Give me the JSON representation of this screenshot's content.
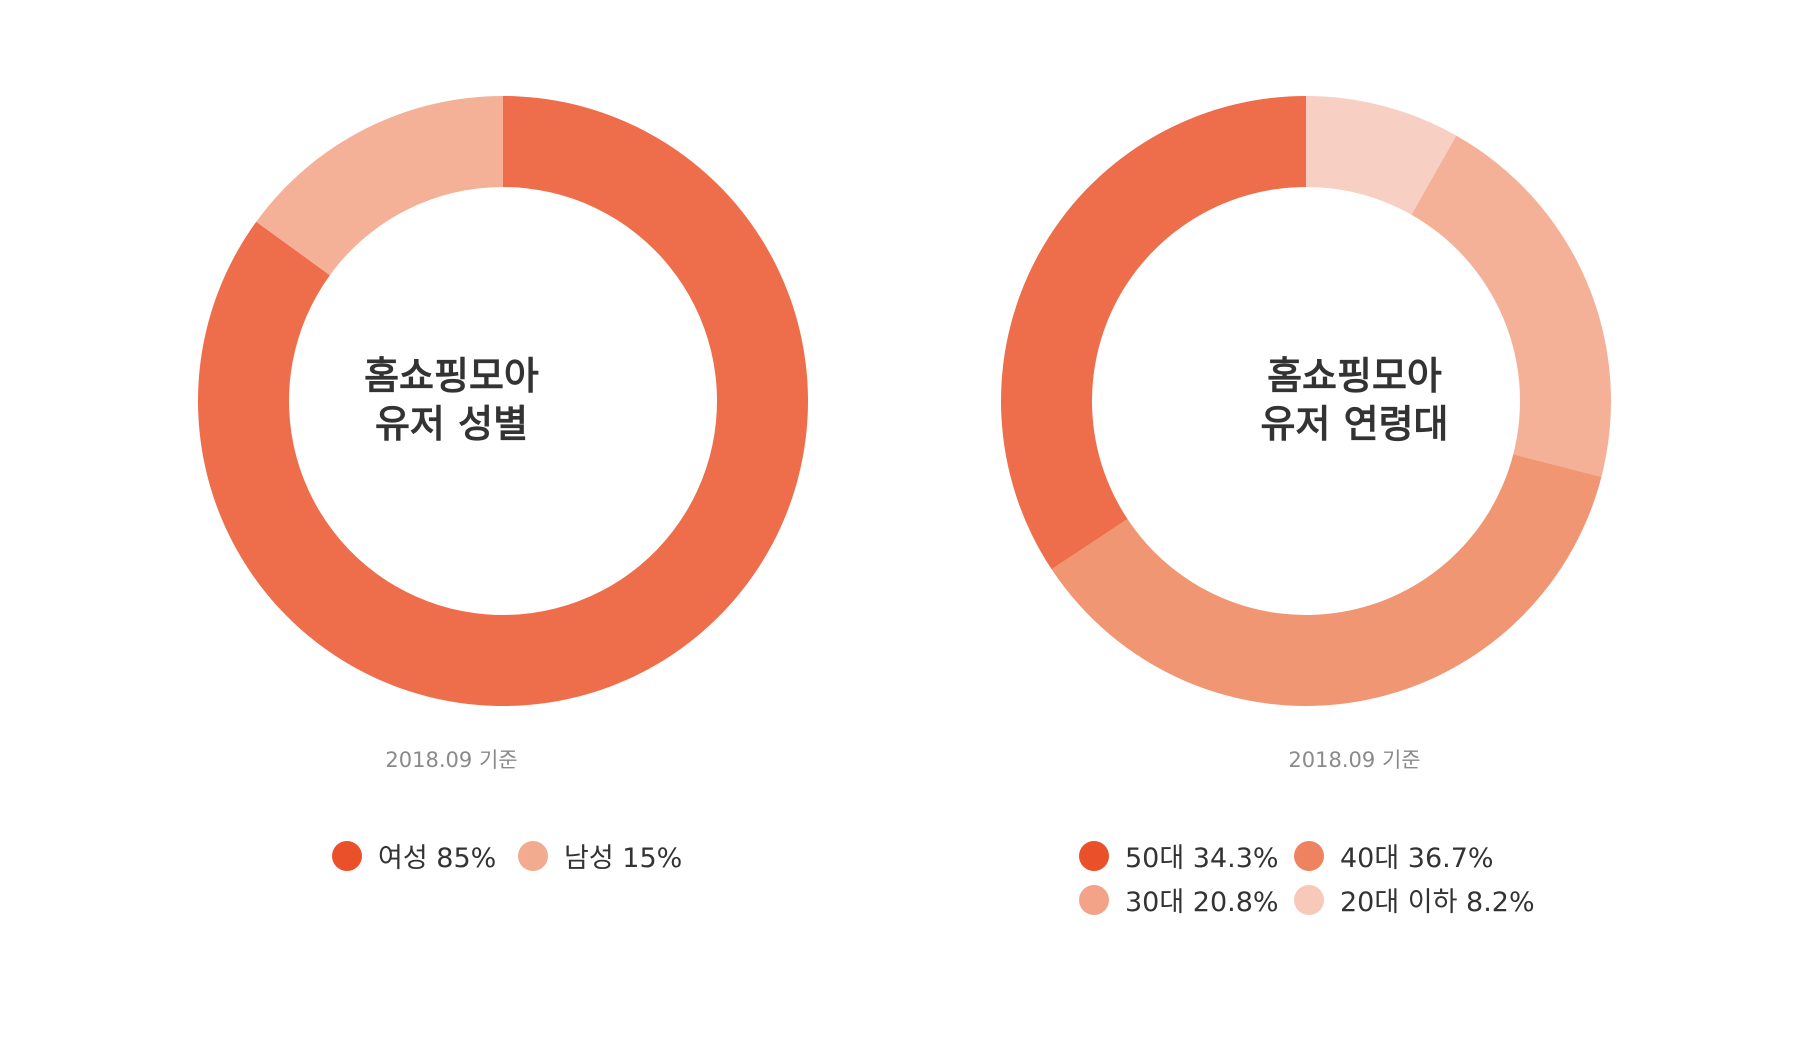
{
  "chart_data": [
    {
      "type": "pie",
      "title": "홈쇼핑모아 유저 성별",
      "title_lines": [
        "홈쇼핑모아",
        "유저 성별"
      ],
      "basis": "2018.09 기준",
      "slices": [
        {
          "label": "여성",
          "value": 85,
          "legend": "여성 85%",
          "color": "#ee6d4a",
          "dot_color": "#ea502a"
        },
        {
          "label": "남성",
          "value": 15,
          "legend": "남성 15%",
          "color": "#f4b198",
          "dot_color": "#f3ab90"
        }
      ]
    },
    {
      "type": "pie",
      "title": "홈쇼핑모아 유저 연령대",
      "title_lines": [
        "홈쇼핑모아",
        "유저 연령대"
      ],
      "basis": "2018.09 기준",
      "slices": [
        {
          "label": "20대 이하",
          "value": 8.2,
          "legend": "20대 이하 8.2%",
          "color": "#f8d0c3",
          "dot_color": "#f8c9b8"
        },
        {
          "label": "30대",
          "value": 20.8,
          "legend": "30대 20.8%",
          "color": "#f4b198",
          "dot_color": "#f3a488"
        },
        {
          "label": "40대",
          "value": 36.7,
          "legend": "40대 36.7%",
          "color": "#f19672",
          "dot_color": "#ef8360"
        },
        {
          "label": "50대",
          "value": 34.3,
          "legend": "50대 34.3%",
          "color": "#ee6d4a",
          "dot_color": "#ea502a"
        }
      ]
    }
  ]
}
